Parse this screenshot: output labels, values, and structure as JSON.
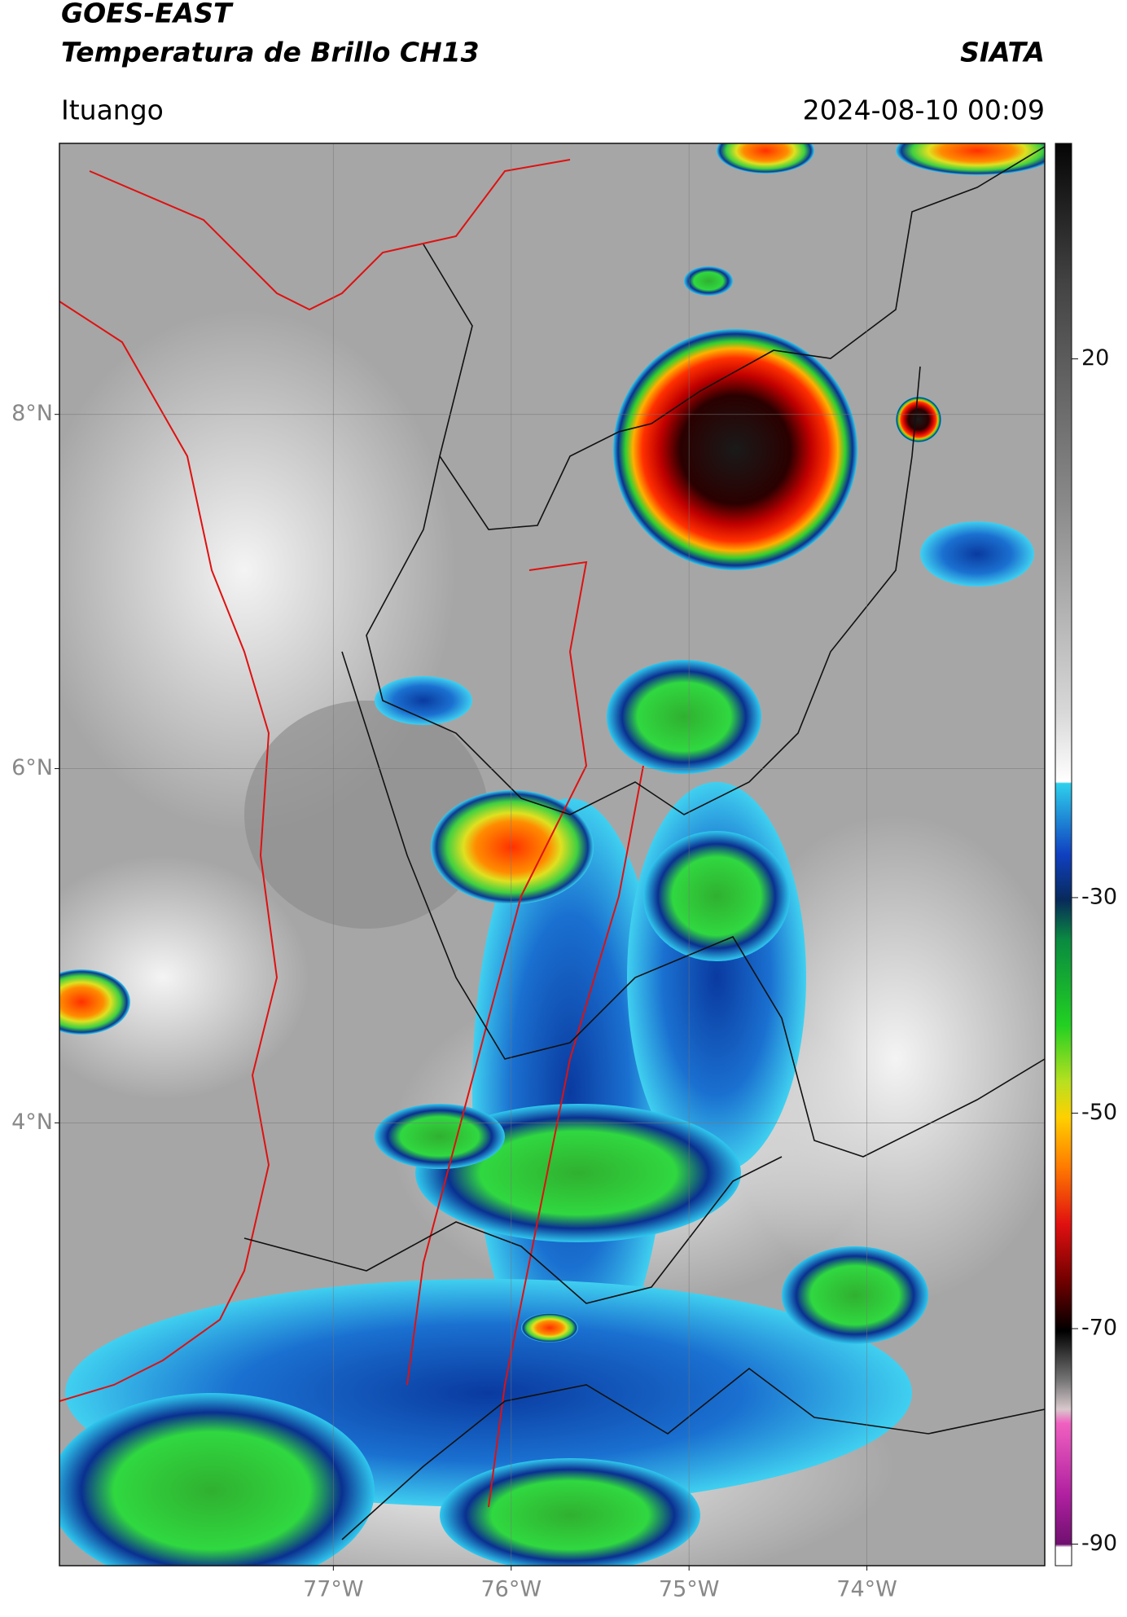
{
  "header": {
    "title": "GOES-EAST",
    "subtitle": "Temperatura de Brillo CH13",
    "brand": "SIATA",
    "location": "Ituango",
    "datetime": "2024-08-10 00:09"
  },
  "map": {
    "xlim": [
      -78.54,
      -73.0
    ],
    "ylim": [
      1.5,
      9.53
    ],
    "xticks": [
      {
        "value": -77,
        "label": "77°W"
      },
      {
        "value": -76,
        "label": "76°W"
      },
      {
        "value": -75,
        "label": "75°W"
      },
      {
        "value": -74,
        "label": "74°W"
      }
    ],
    "yticks": [
      {
        "value": 8,
        "label": "8°N"
      },
      {
        "value": 6,
        "label": "6°N"
      },
      {
        "value": 4,
        "label": "4°N"
      }
    ],
    "grid": true
  },
  "colorbar": {
    "lim": [
      -92,
      40
    ],
    "ticks": [
      20,
      -30,
      -50,
      -70,
      -90
    ]
  }
}
